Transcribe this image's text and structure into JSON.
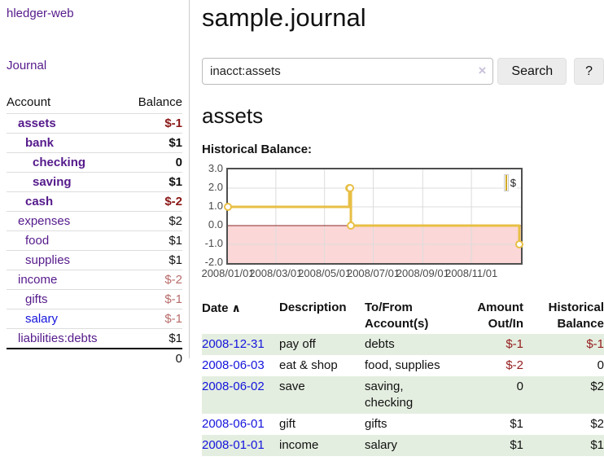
{
  "app": {
    "title": "hledger-web",
    "nav_journal": "Journal"
  },
  "sidebar": {
    "header": {
      "account": "Account",
      "balance": "Balance"
    },
    "accounts": [
      {
        "name": "assets",
        "balance": "$-1",
        "depth": 0,
        "bold": true,
        "neg": "strong",
        "link": "purple"
      },
      {
        "name": "bank",
        "balance": "$1",
        "depth": 1,
        "bold": true,
        "neg": "",
        "link": "purple"
      },
      {
        "name": "checking",
        "balance": "0",
        "depth": 2,
        "bold": true,
        "neg": "",
        "link": "purple"
      },
      {
        "name": "saving",
        "balance": "$1",
        "depth": 2,
        "bold": true,
        "neg": "",
        "link": "purple"
      },
      {
        "name": "cash",
        "balance": "$-2",
        "depth": 1,
        "bold": true,
        "neg": "strong",
        "link": "purple"
      },
      {
        "name": "expenses",
        "balance": "$2",
        "depth": 0,
        "bold": false,
        "neg": "",
        "link": "purple"
      },
      {
        "name": "food",
        "balance": "$1",
        "depth": 1,
        "bold": false,
        "neg": "",
        "link": "purple"
      },
      {
        "name": "supplies",
        "balance": "$1",
        "depth": 1,
        "bold": false,
        "neg": "",
        "link": "purple"
      },
      {
        "name": "income",
        "balance": "$-2",
        "depth": 0,
        "bold": false,
        "neg": "soft",
        "link": "purple"
      },
      {
        "name": "gifts",
        "balance": "$-1",
        "depth": 1,
        "bold": false,
        "neg": "soft",
        "link": "purple"
      },
      {
        "name": "salary",
        "balance": "$-1",
        "depth": 1,
        "bold": false,
        "neg": "soft",
        "link": "blue"
      },
      {
        "name": "liabilities:debts",
        "balance": "$1",
        "depth": 0,
        "bold": false,
        "neg": "",
        "link": "purple"
      }
    ],
    "total": "0"
  },
  "header": {
    "title": "sample.journal"
  },
  "search": {
    "value": "inacct:assets",
    "clear_icon": "×",
    "button_label": "Search",
    "help_label": "?"
  },
  "register": {
    "heading": "assets",
    "chart_label": "Historical Balance:"
  },
  "chart_data": {
    "type": "line",
    "title": "Historical Balance",
    "step": true,
    "series": [
      {
        "name": "$",
        "points": [
          {
            "x": "2008-01-01",
            "y": 1
          },
          {
            "x": "2008-06-01",
            "y": 2
          },
          {
            "x": "2008-06-02",
            "y": 2
          },
          {
            "x": "2008-06-03",
            "y": 0
          },
          {
            "x": "2008-12-31",
            "y": -1
          }
        ]
      }
    ],
    "x_ticks": [
      "2008/01/01",
      "2008/03/01",
      "2008/05/01",
      "2008/07/01",
      "2008/09/01",
      "2008/11/01"
    ],
    "y_ticks": [
      "3.0",
      "2.0",
      "1.0",
      "0.0",
      "-1.0",
      "-2.0"
    ],
    "xlim": [
      "2008-01-01",
      "2008-12-31"
    ],
    "ylim": [
      -2,
      3
    ],
    "grid": true,
    "legend_position": "top-right",
    "colors": {
      "line": "#e8bf45",
      "marker_fill": "#ffffff",
      "negative_region": "#fbd7d7",
      "zero_line": "#8b2525",
      "grid": "#dcdcdc",
      "border": "#4f4f4f"
    }
  },
  "table": {
    "sort_icon": "∧",
    "headers": {
      "date": "Date",
      "description": "Description",
      "accounts": "To/From Account(s)",
      "amount": "Amount Out/In",
      "balance": "Historical Balance"
    },
    "rows": [
      {
        "date": "2008-12-31",
        "description": "pay off",
        "accounts": "debts",
        "amount": "$-1",
        "balance": "$-1",
        "amount_neg": true,
        "balance_neg": true
      },
      {
        "date": "2008-06-03",
        "description": "eat & shop",
        "accounts": "food, supplies",
        "amount": "$-2",
        "balance": "0",
        "amount_neg": true,
        "balance_neg": false
      },
      {
        "date": "2008-06-02",
        "description": "save",
        "accounts": "saving, checking",
        "amount": "0",
        "balance": "$2",
        "amount_neg": false,
        "balance_neg": false
      },
      {
        "date": "2008-06-01",
        "description": "gift",
        "accounts": "gifts",
        "amount": "$1",
        "balance": "$2",
        "amount_neg": false,
        "balance_neg": false
      },
      {
        "date": "2008-01-01",
        "description": "income",
        "accounts": "salary",
        "amount": "$1",
        "balance": "$1",
        "amount_neg": false,
        "balance_neg": false
      }
    ]
  }
}
